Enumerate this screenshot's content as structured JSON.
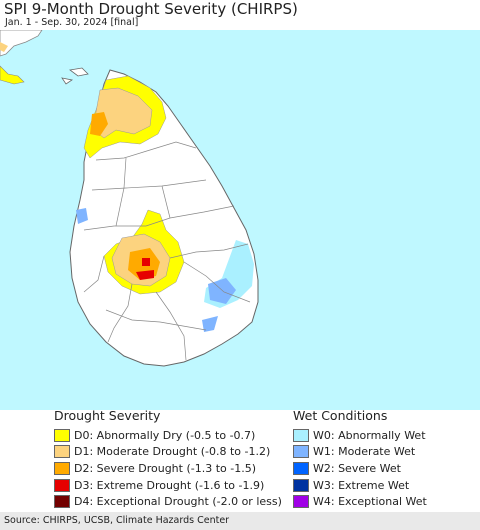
{
  "header": {
    "title": "SPI 9-Month Drought Severity (CHIRPS)",
    "subtitle": "Jan. 1 - Sep. 30, 2024 [final]"
  },
  "legend": {
    "drought": {
      "heading": "Drought Severity",
      "items": [
        {
          "label": "D0: Abnormally Dry (-0.5 to -0.7)",
          "color": "#ffff00"
        },
        {
          "label": "D1: Moderate Drought (-0.8 to -1.2)",
          "color": "#fcd37f"
        },
        {
          "label": "D2: Severe Drought (-1.3 to -1.5)",
          "color": "#ffaa00"
        },
        {
          "label": "D3: Extreme Drought (-1.6 to -1.9)",
          "color": "#e60000"
        },
        {
          "label": "D4: Exceptional Drought (-2.0 or less)",
          "color": "#730000"
        }
      ]
    },
    "wet": {
      "heading": "Wet Conditions",
      "items": [
        {
          "label": "W0: Abnormally Wet",
          "color": "#aaf0ff"
        },
        {
          "label": "W1: Moderate Wet",
          "color": "#7fb4ff"
        },
        {
          "label": "W2: Severe Wet",
          "color": "#0064ff"
        },
        {
          "label": "W3: Extreme Wet",
          "color": "#0032a0"
        },
        {
          "label": "W4: Exceptional Wet",
          "color": "#a000e6"
        }
      ]
    }
  },
  "map": {
    "sea_color": "#bff8ff",
    "land_color": "#ffffff",
    "border_color": "#888888"
  },
  "footer": {
    "source": "Source: CHIRPS, UCSB, Climate Hazards Center"
  }
}
